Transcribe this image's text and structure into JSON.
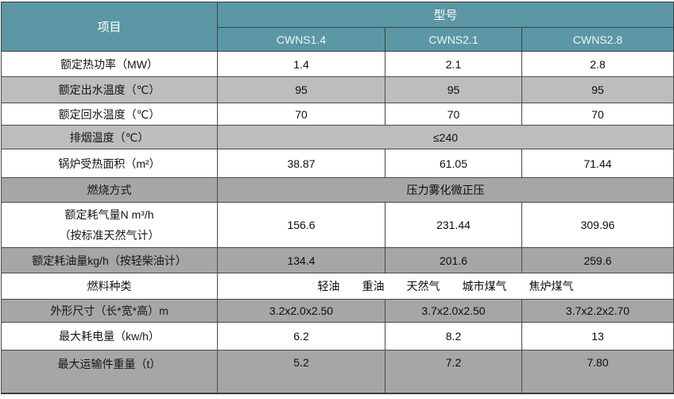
{
  "colors": {
    "header_teal": "#5b97a5",
    "row_gray": "#a6a6a6",
    "row_gray_light": "#bdbdbd",
    "border_dark": "#3f3f3f",
    "border_inner": "#4a4a4a"
  },
  "table": {
    "header": {
      "item_label": "项目",
      "model_label": "型号",
      "models": [
        "CWNS1.4",
        "CWNS2.1",
        "CWNS2.8"
      ]
    },
    "rows": [
      {
        "label": "额定热功率（MW）",
        "values": [
          "1.4",
          "2.1",
          "2.8"
        ]
      },
      {
        "label": "额定出水温度（℃）",
        "values": [
          "95",
          "95",
          "95"
        ]
      },
      {
        "label": "额定回水温度（℃）",
        "values": [
          "70",
          "70",
          "70"
        ]
      },
      {
        "label": "排烟温度（℃）",
        "merged_value": "≤240"
      },
      {
        "label": "锅炉受热面积（m²）",
        "values": [
          "38.87",
          "61.05",
          "71.44"
        ]
      },
      {
        "label": "燃烧方式",
        "merged_value": "压力雾化微正压"
      },
      {
        "label_line1": "额定耗气量N m³/h",
        "label_line2": "（按标准天然气计）",
        "values": [
          "156.6",
          "231.44",
          "309.96"
        ]
      },
      {
        "label": "额定耗油量kg/h（按轻柴油计）",
        "values": [
          "134.4",
          "201.6",
          "259.6"
        ]
      },
      {
        "label": "燃料种类",
        "merged_value": "轻油　　重油　　天然气　　城市煤气　　焦炉煤气"
      },
      {
        "label": "外形尺寸（长*宽*高）m",
        "values": [
          "3.2x2.0x2.50",
          "3.7x2.0x2.50",
          "3.7x2.2x2.70"
        ]
      },
      {
        "label": "最大耗电量（kw/h）",
        "values": [
          "6.2",
          "8.2",
          "13"
        ]
      },
      {
        "label": "最大运输件重量（t）",
        "values": [
          "5.2",
          "7.2",
          "7.80"
        ]
      }
    ]
  }
}
